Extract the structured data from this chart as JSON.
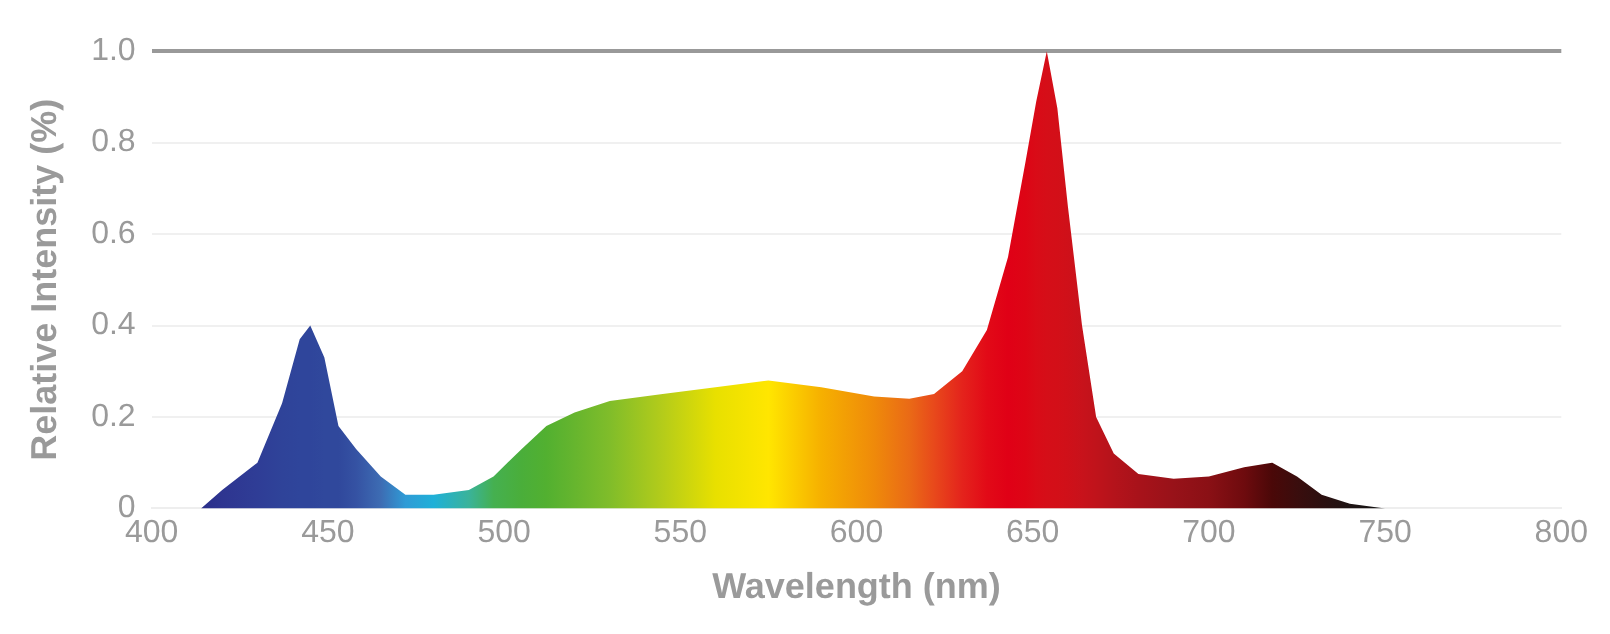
{
  "chart_data": {
    "type": "area",
    "xlabel": "Wavelength (nm)",
    "ylabel": "Relative Intensity (%)",
    "xlim": [
      400,
      800
    ],
    "xticks": [
      400,
      450,
      500,
      550,
      600,
      650,
      700,
      750,
      800
    ],
    "ylim": [
      0,
      1
    ],
    "yticks": [
      0,
      0.2,
      0.4,
      0.6,
      {
        "value": 1,
        "label": "1.0"
      },
      0.8
    ],
    "grid": "y",
    "legend": false,
    "marker": "none",
    "series": [
      {
        "x": [
          405,
          414,
          420,
          430,
          437,
          442,
          445,
          449,
          453,
          458,
          465,
          472,
          480,
          490,
          497,
          505,
          512,
          520,
          530,
          545,
          560,
          575,
          590,
          605,
          615,
          622,
          630,
          637,
          643,
          648,
          651,
          654,
          657,
          660,
          664,
          668,
          673,
          680,
          690,
          700,
          710,
          718,
          725,
          732,
          740,
          750,
          758
        ],
        "values": [
          0,
          0,
          0.04,
          0.1,
          0.23,
          0.37,
          0.4,
          0.33,
          0.18,
          0.13,
          0.07,
          0.03,
          0.03,
          0.04,
          0.07,
          0.13,
          0.18,
          0.21,
          0.235,
          0.25,
          0.265,
          0.28,
          0.265,
          0.245,
          0.24,
          0.25,
          0.3,
          0.39,
          0.55,
          0.76,
          0.89,
          1,
          0.875,
          0.66,
          0.4,
          0.2,
          0.12,
          0.075,
          0.065,
          0.07,
          0.09,
          0.1,
          0.07,
          0.03,
          0.01,
          0,
          0
        ],
        "colors": [
          "#2b2f8a",
          "#2b2f8a",
          "#2e3590",
          "#2f3d96",
          "#2f4399",
          "#2f459b",
          "#2f459b",
          "#30489c",
          "#30489c",
          "#3552a3",
          "#3d6cb3",
          "#2f9bd6",
          "#1fb0d8",
          "#3ab39a",
          "#45b050",
          "#4aae3a",
          "#52b030",
          "#66b52e",
          "#80bd2a",
          "#b4cc1a",
          "#e8e000",
          "#ffe600",
          "#f6b000",
          "#ef8a0a",
          "#ea6a16",
          "#e8491b",
          "#e4231c",
          "#e20a17",
          "#e00016",
          "#dd0515",
          "#d90b17",
          "#d50e18",
          "#d30f18",
          "#cf1019",
          "#c8121b",
          "#c0131b",
          "#b5131b",
          "#a8121a",
          "#981219",
          "#8a1015",
          "#6e0b0e",
          "#4a0808",
          "#3a0d0d",
          "#2c1010",
          "#1e1414",
          "#141414",
          "#111111"
        ]
      }
    ]
  }
}
